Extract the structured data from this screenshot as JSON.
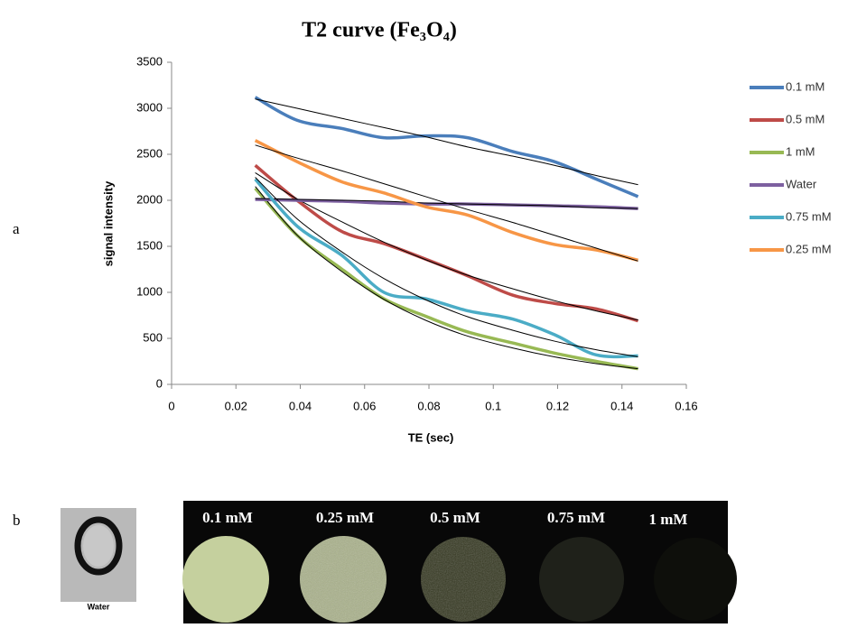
{
  "chart_data": {
    "type": "line",
    "title": "T2 curve (Fe₃O₄)",
    "x_label": "TE (sec)",
    "y_label": "signal intensity",
    "x": [
      0.026,
      0.039,
      0.053,
      0.066,
      0.079,
      0.092,
      0.106,
      0.119,
      0.132,
      0.145
    ],
    "xlim": [
      0,
      0.16
    ],
    "xticks": [
      0,
      0.02,
      0.04,
      0.06,
      0.08,
      0.1,
      0.12,
      0.14,
      0.16
    ],
    "ylim": [
      0,
      3500
    ],
    "yticks": [
      0,
      500,
      1000,
      1500,
      2000,
      2500,
      3000,
      3500
    ],
    "grid": false,
    "legend": "right",
    "trend_color": "#000000",
    "series": [
      {
        "name": "0.1 mM",
        "color": "#4a7ebb",
        "values": [
          3120,
          2870,
          2780,
          2680,
          2700,
          2680,
          2530,
          2420,
          2230,
          2040
        ],
        "trend": [
          3100,
          3000,
          2890,
          2790,
          2690,
          2580,
          2480,
          2380,
          2270,
          2170
        ]
      },
      {
        "name": "0.5 mM",
        "color": "#be4b48",
        "values": [
          2380,
          2000,
          1660,
          1530,
          1360,
          1180,
          970,
          880,
          820,
          690
        ],
        "trend": [
          2300,
          2015,
          1765,
          1546,
          1354,
          1186,
          1039,
          910,
          798,
          700
        ]
      },
      {
        "name": "1 mM",
        "color": "#98b954",
        "values": [
          2130,
          1620,
          1250,
          930,
          740,
          570,
          450,
          340,
          250,
          170
        ],
        "trend": [
          2150,
          1622,
          1224,
          923,
          696,
          525,
          396,
          299,
          226,
          170
        ]
      },
      {
        "name": "Water",
        "color": "#7d60a0",
        "values": [
          2010,
          2000,
          1990,
          1970,
          1960,
          1960,
          1950,
          1940,
          1930,
          1910
        ],
        "trend": [
          2020,
          2010,
          2000,
          1990,
          1970,
          1960,
          1950,
          1940,
          1920,
          1910
        ]
      },
      {
        "name": "0.75 mM",
        "color": "#4bacc6",
        "values": [
          2230,
          1720,
          1400,
          1000,
          930,
          800,
          710,
          540,
          320,
          310
        ],
        "trend": [
          2250,
          1799,
          1438,
          1150,
          919,
          735,
          588,
          470,
          376,
          300
        ]
      },
      {
        "name": "0.25 mM",
        "color": "#f79646",
        "values": [
          2650,
          2420,
          2200,
          2080,
          1930,
          1840,
          1650,
          1520,
          1460,
          1350
        ],
        "trend": [
          2600,
          2460,
          2320,
          2180,
          2040,
          1900,
          1760,
          1620,
          1480,
          1340
        ]
      }
    ]
  },
  "panel_labels": [
    "a",
    "b"
  ],
  "panel_b": {
    "water_label": "Water",
    "labels": [
      "0.1 mM",
      "0.25 mM",
      "0.5 mM",
      "0.75 mM",
      "1 mM"
    ]
  }
}
